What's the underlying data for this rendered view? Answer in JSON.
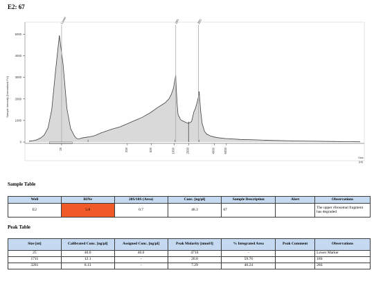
{
  "page_title": "E2: 67",
  "chart_data": {
    "type": "line",
    "ylabel": "Sample Intensity [Normalized FU]",
    "xlabel": "Size [nt]",
    "ylim": [
      0,
      5500
    ],
    "y_ticks": [
      0,
      1000,
      2000,
      3000,
      4000,
      5000
    ],
    "x_ticks": [
      "25",
      "200",
      "500",
      "1000",
      "2000",
      "4000",
      "6000"
    ],
    "peak_labels": [
      "Lower",
      "18S",
      "28S"
    ],
    "grid": false,
    "series": [
      {
        "x": [
          0,
          5,
          10,
          15,
          20,
          25,
          30,
          35,
          40,
          45,
          50,
          55,
          60,
          62,
          64,
          65,
          66,
          68,
          70,
          72,
          75,
          80,
          85,
          90,
          95,
          100,
          110,
          120,
          130,
          140,
          150,
          160,
          170,
          180,
          185,
          188,
          190,
          191,
          192,
          193,
          194,
          195,
          196,
          197,
          198,
          199,
          200,
          202,
          205,
          208,
          211,
          215,
          218,
          220,
          222,
          224,
          225,
          227,
          229,
          232,
          235,
          238,
          240,
          245,
          250,
          260,
          280,
          300,
          320,
          340,
          360,
          380,
          400,
          420,
          438
        ],
        "y": [
          40,
          60,
          100,
          180,
          320,
          650,
          1500,
          3300,
          4950,
          3600,
          1550,
          620,
          280,
          190,
          150,
          140,
          145,
          165,
          185,
          200,
          215,
          240,
          275,
          340,
          420,
          480,
          600,
          700,
          850,
          1000,
          1150,
          1350,
          1600,
          1820,
          2000,
          2200,
          2400,
          2500,
          2700,
          2900,
          3100,
          2300,
          1700,
          1300,
          1200,
          1150,
          1050,
          1000,
          950,
          900,
          870,
          950,
          1400,
          1550,
          1800,
          2100,
          2350,
          1450,
          860,
          500,
          360,
          320,
          280,
          230,
          200,
          160,
          120,
          100,
          75,
          60,
          45,
          35,
          25,
          15,
          10
        ]
      }
    ]
  },
  "sample_table": {
    "title": "Sample Table",
    "headers": [
      "Well",
      "RINe",
      "28S/18S (Area)",
      "Conc. [ng/µl]",
      "Sample Description",
      "Alert",
      "Observations"
    ],
    "row": {
      "well": "E2",
      "rine": "5.8",
      "ratio": "0.7",
      "conc": "48.3",
      "description": "67",
      "alert": "",
      "observations": "The upper ribosomal fragment has degraded"
    },
    "alert_color": "#f05a28"
  },
  "peak_table": {
    "title": "Peak Table",
    "headers": [
      "Size [nt]",
      "Calibrated Conc. [ng/µl]",
      "Assigned Conc. [ng/µl]",
      "Peak Molarity [nmol/l]",
      "% Integrated Area",
      "Peak Comment",
      "Observations"
    ],
    "rows": [
      [
        "25",
        "40.0",
        "40.0",
        "4710",
        "-",
        "",
        "Lower Marker"
      ],
      [
        "1711",
        "12.1",
        "-",
        "20.8",
        "59.76",
        "",
        "18S"
      ],
      [
        "3281",
        "8.13",
        "-",
        "7.29",
        "40.24",
        "",
        "28S"
      ]
    ]
  }
}
